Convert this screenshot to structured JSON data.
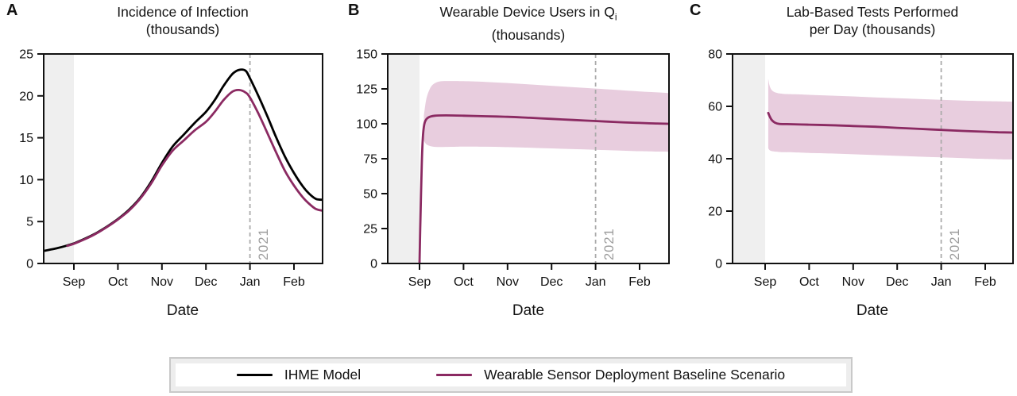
{
  "page": {
    "background": "#ffffff"
  },
  "colors": {
    "ihme_line": "#000000",
    "scenario_line": "#8b2a62",
    "confidence_band": "#e8cdde",
    "pre_period_shading": "#efefef",
    "vline": "#ababab",
    "vline_label": "#9c9c9c",
    "axis": "#111111"
  },
  "legend": {
    "items": [
      {
        "label": "IHME Model",
        "color": "#000000"
      },
      {
        "label": "Wearable Sensor Deployment Baseline Scenario",
        "color": "#8b2a62"
      }
    ]
  },
  "chart_data": [
    {
      "type": "line",
      "panel_letter": "A",
      "title_line1": "Incidence of Infection",
      "title_line2": "(thousands)",
      "xlabel": "Date",
      "x_tick_labels": [
        "Sep",
        "Oct",
        "Nov",
        "Dec",
        "Jan",
        "Feb"
      ],
      "y_ticks": [
        0,
        5,
        10,
        15,
        20,
        25
      ],
      "ylim": [
        0,
        25
      ],
      "x_axis_note": "x in months, Sep=0 through Feb=5",
      "vline": {
        "x_month": 4,
        "label": "2021"
      },
      "shaded_pre_period": true,
      "series": [
        {
          "name": "IHME Model",
          "color": "#000000",
          "points": [
            [
              -0.69,
              1.5
            ],
            [
              -0.4,
              1.8
            ],
            [
              -0.15,
              2.15
            ],
            [
              0,
              2.4
            ],
            [
              0.25,
              2.95
            ],
            [
              0.5,
              3.6
            ],
            [
              0.75,
              4.4
            ],
            [
              1,
              5.3
            ],
            [
              1.25,
              6.4
            ],
            [
              1.5,
              7.8
            ],
            [
              1.75,
              9.7
            ],
            [
              2,
              12.0
            ],
            [
              2.25,
              14.0
            ],
            [
              2.5,
              15.4
            ],
            [
              2.75,
              16.8
            ],
            [
              3,
              18.1
            ],
            [
              3.2,
              19.5
            ],
            [
              3.4,
              21.2
            ],
            [
              3.6,
              22.6
            ],
            [
              3.75,
              23.1
            ],
            [
              3.9,
              23.0
            ],
            [
              4,
              22.1
            ],
            [
              4.2,
              19.9
            ],
            [
              4.4,
              17.5
            ],
            [
              4.6,
              15.0
            ],
            [
              4.8,
              12.7
            ],
            [
              5,
              10.8
            ],
            [
              5.2,
              9.2
            ],
            [
              5.35,
              8.3
            ],
            [
              5.5,
              7.7
            ],
            [
              5.65,
              7.6
            ]
          ]
        },
        {
          "name": "Wearable Sensor Deployment Baseline Scenario",
          "color": "#8b2a62",
          "points": [
            [
              -0.15,
              2.1
            ],
            [
              0,
              2.35
            ],
            [
              0.25,
              2.9
            ],
            [
              0.5,
              3.55
            ],
            [
              0.75,
              4.35
            ],
            [
              1,
              5.25
            ],
            [
              1.25,
              6.3
            ],
            [
              1.5,
              7.7
            ],
            [
              1.75,
              9.5
            ],
            [
              2,
              11.7
            ],
            [
              2.25,
              13.5
            ],
            [
              2.5,
              14.7
            ],
            [
              2.75,
              15.9
            ],
            [
              3,
              16.9
            ],
            [
              3.2,
              18.1
            ],
            [
              3.4,
              19.5
            ],
            [
              3.6,
              20.5
            ],
            [
              3.75,
              20.7
            ],
            [
              3.9,
              20.4
            ],
            [
              4,
              19.8
            ],
            [
              4.2,
              17.8
            ],
            [
              4.4,
              15.5
            ],
            [
              4.6,
              13.2
            ],
            [
              4.8,
              11.0
            ],
            [
              5,
              9.3
            ],
            [
              5.2,
              7.9
            ],
            [
              5.35,
              7.1
            ],
            [
              5.5,
              6.5
            ],
            [
              5.65,
              6.3
            ]
          ]
        }
      ]
    },
    {
      "type": "line",
      "panel_letter": "B",
      "title_line1": "Wearable Device Users in Q",
      "title_sub": "i",
      "title_line2": "(thousands)",
      "xlabel": "Date",
      "x_tick_labels": [
        "Sep",
        "Oct",
        "Nov",
        "Dec",
        "Jan",
        "Feb"
      ],
      "y_ticks": [
        0,
        25,
        50,
        75,
        100,
        125,
        150
      ],
      "ylim": [
        0,
        150
      ],
      "vline": {
        "x_month": 4,
        "label": "2021"
      },
      "shaded_pre_period": true,
      "band": {
        "color": "#e8cdde",
        "upper": [
          [
            0.1,
            106
          ],
          [
            0.15,
            117
          ],
          [
            0.22,
            124
          ],
          [
            0.3,
            128
          ],
          [
            0.45,
            130.3
          ],
          [
            0.7,
            130.6
          ],
          [
            1,
            130.5
          ],
          [
            1.5,
            130.0
          ],
          [
            2,
            129.2
          ],
          [
            2.5,
            128.2
          ],
          [
            3,
            127.2
          ],
          [
            3.5,
            126.2
          ],
          [
            4,
            125.2
          ],
          [
            4.5,
            124.2
          ],
          [
            5,
            123.2
          ],
          [
            5.4,
            122.5
          ],
          [
            5.66,
            122
          ]
        ],
        "lower": [
          [
            0.1,
            88
          ],
          [
            0.15,
            85.5
          ],
          [
            0.22,
            84.3
          ],
          [
            0.3,
            83.7
          ],
          [
            0.45,
            83.4
          ],
          [
            0.7,
            83.5
          ],
          [
            1,
            83.7
          ],
          [
            1.5,
            83.6
          ],
          [
            2,
            83.3
          ],
          [
            2.5,
            82.9
          ],
          [
            3,
            82.4
          ],
          [
            3.5,
            81.9
          ],
          [
            4,
            81.4
          ],
          [
            4.5,
            80.9
          ],
          [
            5,
            80.4
          ],
          [
            5.4,
            80.1
          ],
          [
            5.66,
            80
          ]
        ]
      },
      "series": [
        {
          "name": "Wearable Sensor Deployment Baseline Scenario",
          "color": "#8b2a62",
          "points": [
            [
              0,
              0
            ],
            [
              0.02,
              30
            ],
            [
              0.05,
              70
            ],
            [
              0.08,
              92
            ],
            [
              0.12,
              101
            ],
            [
              0.2,
              104.5
            ],
            [
              0.35,
              105.8
            ],
            [
              0.6,
              106
            ],
            [
              1,
              105.8
            ],
            [
              1.5,
              105.4
            ],
            [
              2,
              105.0
            ],
            [
              2.5,
              104.3
            ],
            [
              3,
              103.5
            ],
            [
              3.5,
              102.7
            ],
            [
              4,
              102.0
            ],
            [
              4.5,
              101.2
            ],
            [
              5,
              100.6
            ],
            [
              5.4,
              100.2
            ],
            [
              5.66,
              100
            ]
          ]
        }
      ]
    },
    {
      "type": "line",
      "panel_letter": "C",
      "title_line1": "Lab-Based Tests Performed",
      "title_line2": "per Day (thousands)",
      "xlabel": "Date",
      "x_tick_labels": [
        "Sep",
        "Oct",
        "Nov",
        "Dec",
        "Jan",
        "Feb"
      ],
      "y_ticks": [
        0,
        20,
        40,
        60,
        80
      ],
      "ylim": [
        0,
        80
      ],
      "vline": {
        "x_month": 4,
        "label": "2021"
      },
      "shaded_pre_period": true,
      "band": {
        "color": "#e8cdde",
        "upper": [
          [
            0.07,
            70.5
          ],
          [
            0.1,
            68.0
          ],
          [
            0.15,
            66.2
          ],
          [
            0.25,
            65.2
          ],
          [
            0.4,
            64.8
          ],
          [
            0.7,
            64.6
          ],
          [
            1,
            64.4
          ],
          [
            1.5,
            64.1
          ],
          [
            2,
            63.8
          ],
          [
            2.5,
            63.4
          ],
          [
            3,
            63.1
          ],
          [
            3.5,
            62.8
          ],
          [
            4,
            62.5
          ],
          [
            4.5,
            62.2
          ],
          [
            5,
            62.0
          ],
          [
            5.3,
            61.9
          ],
          [
            5.63,
            61.8
          ]
        ],
        "lower": [
          [
            0.07,
            44.0
          ],
          [
            0.1,
            43.3
          ],
          [
            0.15,
            42.9
          ],
          [
            0.25,
            42.7
          ],
          [
            0.4,
            42.5
          ],
          [
            0.7,
            42.4
          ],
          [
            1,
            42.2
          ],
          [
            1.5,
            42.0
          ],
          [
            2,
            41.7
          ],
          [
            2.5,
            41.4
          ],
          [
            3,
            41.1
          ],
          [
            3.5,
            40.8
          ],
          [
            4,
            40.5
          ],
          [
            4.5,
            40.2
          ],
          [
            5,
            39.9
          ],
          [
            5.3,
            39.8
          ],
          [
            5.63,
            39.7
          ]
        ]
      },
      "series": [
        {
          "name": "Wearable Sensor Deployment Baseline Scenario",
          "color": "#8b2a62",
          "points": [
            [
              0.07,
              57.5
            ],
            [
              0.1,
              56.3
            ],
            [
              0.15,
              54.8
            ],
            [
              0.22,
              53.8
            ],
            [
              0.32,
              53.3
            ],
            [
              0.5,
              53.2
            ],
            [
              1,
              53.0
            ],
            [
              1.5,
              52.8
            ],
            [
              2,
              52.5
            ],
            [
              2.5,
              52.2
            ],
            [
              3,
              51.8
            ],
            [
              3.5,
              51.4
            ],
            [
              4,
              51.0
            ],
            [
              4.5,
              50.6
            ],
            [
              5,
              50.3
            ],
            [
              5.3,
              50.1
            ],
            [
              5.63,
              50.0
            ]
          ]
        }
      ]
    }
  ]
}
